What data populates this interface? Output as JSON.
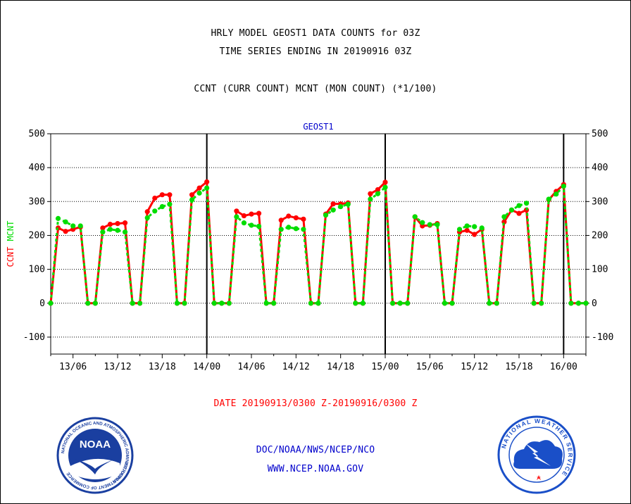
{
  "header": {
    "title_line1": "HRLY MODEL GEOST1 DATA COUNTS for 03Z",
    "title_line2": "TIME SERIES ENDING IN 20190916 03Z",
    "subtitle": "CCNT (CURR COUNT) MCNT (MON COUNT) (*1/100)"
  },
  "footer": {
    "date_range": "DATE 20190913/0300 Z-20190916/0300 Z",
    "org_path": "DOC/NOAA/NWS/NCEP/NCO",
    "website": "WWW.NCEP.NOAA.GOV"
  },
  "logos": {
    "noaa_center": "NOAA",
    "noaa_ring": "NATIONAL OCEANIC AND ATMOSPHERIC ADMINISTRATION",
    "noaa_bottom": "U.S. DEPARTMENT OF COMMERCE",
    "nws_ring": "NATIONAL WEATHER SERVICE"
  },
  "colors": {
    "ccnt": "#ff0000",
    "mcnt": "#00dd00",
    "text_blue": "#0000cc",
    "noaa_blue": "#1a3fa0",
    "nws_blue": "#1a4fc8"
  },
  "chart_data": {
    "type": "line",
    "panel_title": "GEOST1",
    "ylabel_series": [
      "CCNT",
      "MCNT"
    ],
    "ylim": [
      -150,
      500
    ],
    "yticks": [
      -100,
      0,
      100,
      200,
      300,
      400,
      500
    ],
    "grid": "horizontal dotted at each 100",
    "x_unit": "hours since 2019-09-13 03Z",
    "xlim": [
      3,
      75
    ],
    "xtick_labels": [
      {
        "label": "13/06",
        "hour": 6
      },
      {
        "label": "13/12",
        "hour": 12
      },
      {
        "label": "13/18",
        "hour": 18
      },
      {
        "label": "14/00",
        "hour": 24
      },
      {
        "label": "14/06",
        "hour": 30
      },
      {
        "label": "14/12",
        "hour": 36
      },
      {
        "label": "14/18",
        "hour": 42
      },
      {
        "label": "15/00",
        "hour": 48
      },
      {
        "label": "15/06",
        "hour": 54
      },
      {
        "label": "15/12",
        "hour": 60
      },
      {
        "label": "15/18",
        "hour": 66
      },
      {
        "label": "16/00",
        "hour": 72
      }
    ],
    "day_boundaries": [
      24,
      48,
      72
    ],
    "series": [
      {
        "name": "CCNT",
        "values": [
          0,
          222,
          212,
          218,
          225,
          0,
          0,
          222,
          233,
          235,
          237,
          0,
          0,
          270,
          310,
          320,
          320,
          0,
          0,
          320,
          340,
          358,
          0,
          0,
          0,
          272,
          258,
          263,
          265,
          0,
          0,
          245,
          257,
          252,
          248,
          0,
          0,
          263,
          293,
          293,
          296,
          0,
          0,
          323,
          335,
          357,
          0,
          0,
          0,
          255,
          228,
          230,
          235,
          0,
          0,
          210,
          215,
          203,
          218,
          0,
          0,
          240,
          275,
          265,
          275,
          0,
          0,
          305,
          330,
          350,
          0,
          0,
          0
        ]
      },
      {
        "name": "MCNT",
        "values": [
          0,
          250,
          240,
          228,
          228,
          0,
          0,
          210,
          218,
          215,
          210,
          0,
          0,
          252,
          272,
          285,
          292,
          0,
          0,
          305,
          325,
          340,
          0,
          0,
          0,
          255,
          237,
          230,
          227,
          0,
          0,
          218,
          224,
          220,
          218,
          0,
          0,
          260,
          275,
          285,
          292,
          0,
          0,
          307,
          323,
          342,
          0,
          0,
          0,
          255,
          238,
          232,
          232,
          0,
          0,
          218,
          228,
          226,
          222,
          0,
          0,
          255,
          275,
          288,
          295,
          0,
          0,
          307,
          322,
          345,
          0,
          0,
          0
        ]
      }
    ]
  }
}
